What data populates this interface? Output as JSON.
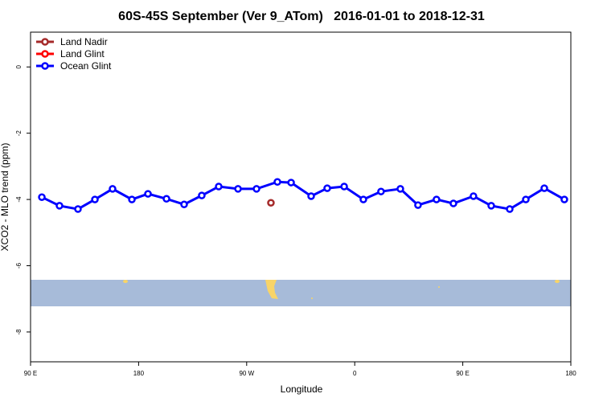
{
  "chart_data": {
    "type": "line",
    "title": "60S-45S September (Ver 9_ATom)   2016-01-01 to 2018-12-31",
    "x_label": "Longitude",
    "y_label": "XCO2 - MLO trend (ppm)",
    "xlim": [
      90,
      540
    ],
    "xticks": [
      {
        "value": 90,
        "label": "90 E"
      },
      {
        "value": 180,
        "label": "180"
      },
      {
        "value": 270,
        "label": "90 W"
      },
      {
        "value": 360,
        "label": "0"
      },
      {
        "value": 450,
        "label": "90 E"
      },
      {
        "value": 540,
        "label": "180"
      }
    ],
    "ylim": [
      -8.9,
      1.05
    ],
    "yticks": [
      0,
      -2,
      -4,
      -6,
      -8
    ],
    "legend": "top-left",
    "series": [
      {
        "name": "Land Nadir",
        "color": "#a52a2a",
        "x": [
          290.2
        ],
        "values": [
          -4.1
        ]
      },
      {
        "name": "Land Glint",
        "color": "#ff0000",
        "x": [],
        "values": []
      },
      {
        "name": "Ocean Glint",
        "color": "#0000ff",
        "x": [
          99.4,
          114.1,
          129.5,
          143.6,
          158.3,
          174.4,
          187.8,
          203.2,
          217.9,
          232.6,
          246.7,
          262.8,
          278.2,
          295.6,
          307,
          323.7,
          337.1,
          351.2,
          367.2,
          381.9,
          398,
          412.7,
          428.1,
          442.2,
          458.9,
          473.7,
          489.1,
          502.5,
          517.9,
          534.6
        ],
        "values": [
          -3.93,
          -4.19,
          -4.29,
          -4.0,
          -3.68,
          -4.0,
          -3.83,
          -3.98,
          -4.15,
          -3.88,
          -3.61,
          -3.68,
          -3.68,
          -3.47,
          -3.49,
          -3.9,
          -3.66,
          -3.61,
          -4.0,
          -3.76,
          -3.68,
          -4.17,
          -4.0,
          -4.12,
          -3.9,
          -4.19,
          -4.29,
          -4.0,
          -3.66,
          -4.0
        ]
      }
    ]
  }
}
